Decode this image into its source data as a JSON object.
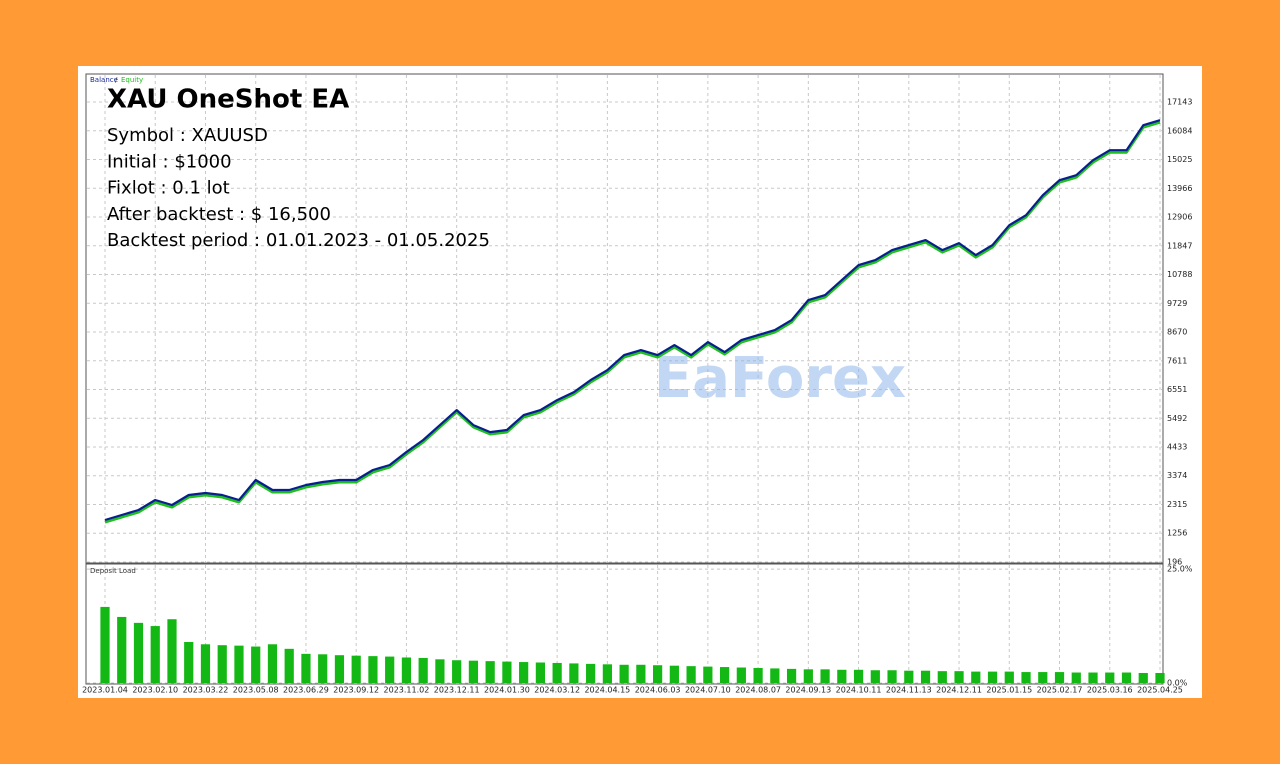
{
  "overlay": {
    "title": "XAU OneShot EA",
    "lines": [
      "Symbol : XAUUSD",
      "Initial : $1000",
      "Fixlot : 0.1 lot",
      "After backtest : $ 16,500",
      "Backtest period : 01.01.2023 - 01.05.2025"
    ]
  },
  "watermark": "EaForex",
  "legend_separator": "/",
  "chart_data": [
    {
      "type": "line",
      "categories": [
        "2023.01.04",
        null,
        null,
        "2023.02.10",
        null,
        null,
        "2023.03.22",
        null,
        null,
        "2023.05.08",
        null,
        null,
        "2023.06.29",
        null,
        null,
        "2023.09.12",
        null,
        null,
        "2023.11.02",
        null,
        null,
        "2023.12.11",
        null,
        null,
        "2024.01.30",
        null,
        null,
        "2024.03.12",
        null,
        null,
        "2024.04.15",
        null,
        null,
        "2024.06.03",
        null,
        null,
        "2024.07.10",
        null,
        null,
        "2024.08.07",
        null,
        null,
        "2024.09.13",
        null,
        null,
        "2024.10.11",
        null,
        null,
        "2024.11.13",
        null,
        null,
        "2024.12.11",
        null,
        null,
        "2025.01.15",
        null,
        null,
        "2025.02.17",
        null,
        null,
        "2025.03.16",
        null,
        null,
        "2025.04.25"
      ],
      "series": [
        {
          "name": "Balance",
          "color": "#0a1f8f",
          "values": [
            1743,
            1927,
            2111,
            2480,
            2295,
            2664,
            2737,
            2664,
            2480,
            3216,
            2848,
            2848,
            3032,
            3143,
            3216,
            3216,
            3585,
            3769,
            4248,
            4690,
            5242,
            5794,
            5242,
            4984,
            5058,
            5610,
            5794,
            6163,
            6457,
            6899,
            7268,
            7820,
            8004,
            7820,
            8188,
            7820,
            8299,
            7930,
            8372,
            8557,
            8741,
            9109,
            9846,
            10030,
            10582,
            11135,
            11319,
            11687,
            11871,
            12055,
            11687,
            11945,
            11503,
            11871,
            12607,
            12975,
            13712,
            14264,
            14448,
            15000,
            15369,
            15369,
            16290,
            16474
          ]
        },
        {
          "name": "Equity",
          "color": "#1fbf1f",
          "values": [
            1663,
            1847,
            2031,
            2400,
            2215,
            2584,
            2657,
            2584,
            2400,
            3136,
            2768,
            2768,
            2952,
            3063,
            3136,
            3136,
            3505,
            3689,
            4168,
            4610,
            5162,
            5714,
            5162,
            4904,
            4978,
            5530,
            5714,
            6083,
            6377,
            6819,
            7188,
            7740,
            7924,
            7740,
            8108,
            7740,
            8219,
            7850,
            8292,
            8477,
            8661,
            9029,
            9766,
            9950,
            10502,
            11055,
            11239,
            11607,
            11791,
            11975,
            11607,
            11865,
            11423,
            11791,
            12527,
            12895,
            13632,
            14184,
            14368,
            14920,
            15289,
            15289,
            16210,
            16394
          ]
        }
      ],
      "ylim": [
        196,
        18140
      ],
      "yticks": [
        196,
        1256,
        2315,
        3374,
        4433,
        5492,
        6551,
        7611,
        8670,
        9729,
        10788,
        11847,
        12906,
        13966,
        15025,
        16084,
        17143
      ],
      "grid": true
    },
    {
      "type": "bar",
      "title": "Deposit Load",
      "color": "#14b814",
      "values": [
        16.7,
        14.5,
        13.2,
        12.5,
        14.0,
        9.0,
        8.5,
        8.3,
        8.2,
        8.0,
        8.5,
        7.5,
        6.4,
        6.3,
        6.1,
        6.0,
        5.9,
        5.8,
        5.6,
        5.5,
        5.2,
        5.0,
        4.9,
        4.8,
        4.7,
        4.6,
        4.5,
        4.4,
        4.3,
        4.2,
        4.1,
        4.0,
        4.0,
        3.9,
        3.8,
        3.7,
        3.6,
        3.5,
        3.4,
        3.3,
        3.2,
        3.1,
        3.0,
        3.0,
        2.9,
        2.9,
        2.8,
        2.8,
        2.7,
        2.7,
        2.6,
        2.6,
        2.5,
        2.5,
        2.5,
        2.4,
        2.4,
        2.4,
        2.3,
        2.3,
        2.3,
        2.3,
        2.2,
        2.2
      ],
      "ylim": [
        0,
        25.9
      ],
      "yticks": [
        {
          "value": 0,
          "label": "0.0%"
        },
        {
          "value": 25,
          "label": "25.0%"
        }
      ],
      "grid": true
    }
  ]
}
